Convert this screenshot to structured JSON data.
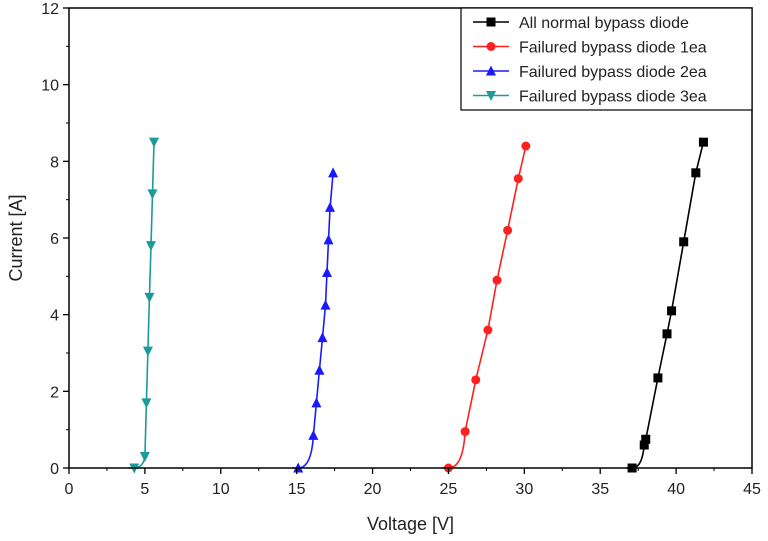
{
  "chart_data": {
    "type": "line",
    "title": "",
    "xlabel": "Voltage [V]",
    "ylabel": "Current [A]",
    "xlim": [
      0,
      45
    ],
    "ylim": [
      0,
      12
    ],
    "xticks": [
      0,
      5,
      10,
      15,
      20,
      25,
      30,
      35,
      40,
      45
    ],
    "yticks": [
      0,
      2,
      4,
      6,
      8,
      10,
      12
    ],
    "grid": false,
    "legend_position": "top-right",
    "series": [
      {
        "name": "All normal bypass diode",
        "color": "#000000",
        "marker": "square",
        "x": [
          37.1,
          37.9,
          38.0,
          38.8,
          39.4,
          39.7,
          40.5,
          41.3,
          41.8
        ],
        "y": [
          0.0,
          0.6,
          0.75,
          2.35,
          3.5,
          4.1,
          5.9,
          7.7,
          8.5
        ]
      },
      {
        "name": "Failured bypass diode 1ea",
        "color": "#ff2020",
        "marker": "circle",
        "x": [
          25.0,
          26.1,
          26.8,
          27.6,
          28.2,
          28.9,
          29.6,
          30.1
        ],
        "y": [
          0.0,
          0.95,
          2.3,
          3.6,
          4.9,
          6.2,
          7.55,
          8.4
        ]
      },
      {
        "name": "Failured bypass diode 2ea",
        "color": "#1a1aff",
        "marker": "triangle-up",
        "x": [
          15.1,
          16.1,
          16.3,
          16.5,
          16.7,
          16.9,
          17.0,
          17.1,
          17.2,
          17.4
        ],
        "y": [
          0.0,
          0.85,
          1.7,
          2.55,
          3.4,
          4.25,
          5.1,
          5.95,
          6.8,
          7.7
        ]
      },
      {
        "name": "Failured bypass diode 3ea",
        "color": "#1a9a9a",
        "marker": "triangle-down",
        "x": [
          4.3,
          5.0,
          5.1,
          5.2,
          5.3,
          5.4,
          5.5,
          5.6
        ],
        "y": [
          0.0,
          0.3,
          1.7,
          3.05,
          4.45,
          5.8,
          7.15,
          8.5
        ]
      }
    ]
  }
}
